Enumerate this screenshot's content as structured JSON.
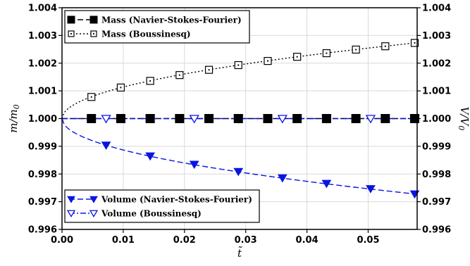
{
  "chart_data": {
    "type": "line",
    "title": "",
    "xlabel": "t̃",
    "ylabel_left": "m/m",
    "ylabel_left_sub": "0",
    "ylabel_right": "V/V",
    "ylabel_right_sub": "0",
    "xlim": [
      0,
      0.058
    ],
    "ylim": [
      0.996,
      1.004
    ],
    "grid": true,
    "x_ticks": [
      0.0,
      0.01,
      0.02,
      0.03,
      0.04,
      0.05
    ],
    "x_tick_labels": [
      "0.00",
      "0.01",
      "0.02",
      "0.03",
      "0.04",
      "0.05"
    ],
    "y_ticks": [
      0.996,
      0.997,
      0.998,
      0.999,
      1.0,
      1.001,
      1.002,
      1.003,
      1.004
    ],
    "y_tick_labels": [
      "0.996",
      "0.997",
      "0.998",
      "0.999",
      "1.000",
      "1.001",
      "1.002",
      "1.003",
      "1.004"
    ],
    "legends": [
      {
        "placement": "top-left",
        "entries": [
          {
            "name": "Mass (Navier-Stokes-Fourier)",
            "series": 0
          },
          {
            "name": "Mass (Boussinesq)",
            "series": 1
          }
        ]
      },
      {
        "placement": "bottom-left",
        "entries": [
          {
            "name": "Volume (Navier-Stokes-Fourier)",
            "series": 2
          },
          {
            "name": "Volume (Boussinesq)",
            "series": 3
          }
        ]
      }
    ],
    "series": [
      {
        "name": "Mass (Navier-Stokes-Fourier)",
        "color": "#000000",
        "line": "dashed",
        "marker": "square-filled",
        "axis": "left",
        "curve": "flat",
        "marker_x": [
          0.0048,
          0.0096,
          0.0144,
          0.0192,
          0.024,
          0.0288,
          0.0336,
          0.0384,
          0.0432,
          0.048,
          0.0528,
          0.0576
        ],
        "marker_y": [
          1.0,
          1.0,
          1.0,
          1.0,
          1.0,
          1.0,
          1.0,
          1.0,
          1.0,
          1.0,
          1.0,
          1.0
        ]
      },
      {
        "name": "Mass (Boussinesq)",
        "color": "#000000",
        "line": "dotted",
        "marker": "square-open-dot",
        "axis": "left",
        "curve": "sqrt",
        "marker_x": [
          0.0048,
          0.0096,
          0.0144,
          0.0192,
          0.024,
          0.0288,
          0.0336,
          0.0384,
          0.0432,
          0.048,
          0.0528,
          0.0576
        ],
        "marker_y": [
          1.00078,
          1.00112,
          1.00136,
          1.00157,
          1.00176,
          1.00193,
          1.00208,
          1.00223,
          1.00236,
          1.00249,
          1.00261,
          1.00273
        ]
      },
      {
        "name": "Volume (Navier-Stokes-Fourier)",
        "color": "#0a14e0",
        "line": "dashed",
        "marker": "triangle-down-filled",
        "axis": "right",
        "curve": "sqrt",
        "marker_x": [
          0.0072,
          0.0144,
          0.0216,
          0.0288,
          0.036,
          0.0432,
          0.0504,
          0.0576
        ],
        "marker_y": [
          0.99904,
          0.99865,
          0.99835,
          0.99809,
          0.99786,
          0.99766,
          0.99747,
          0.99728
        ]
      },
      {
        "name": "Volume (Boussinesq)",
        "color": "#0a14e0",
        "line": "dashdot",
        "marker": "triangle-down-open",
        "axis": "right",
        "curve": "flat",
        "marker_x": [
          0.0072,
          0.0144,
          0.0216,
          0.0288,
          0.036,
          0.0432,
          0.0504,
          0.0576
        ],
        "marker_y": [
          1.0,
          1.0,
          1.0,
          1.0,
          1.0,
          1.0,
          1.0,
          1.0
        ]
      }
    ]
  }
}
